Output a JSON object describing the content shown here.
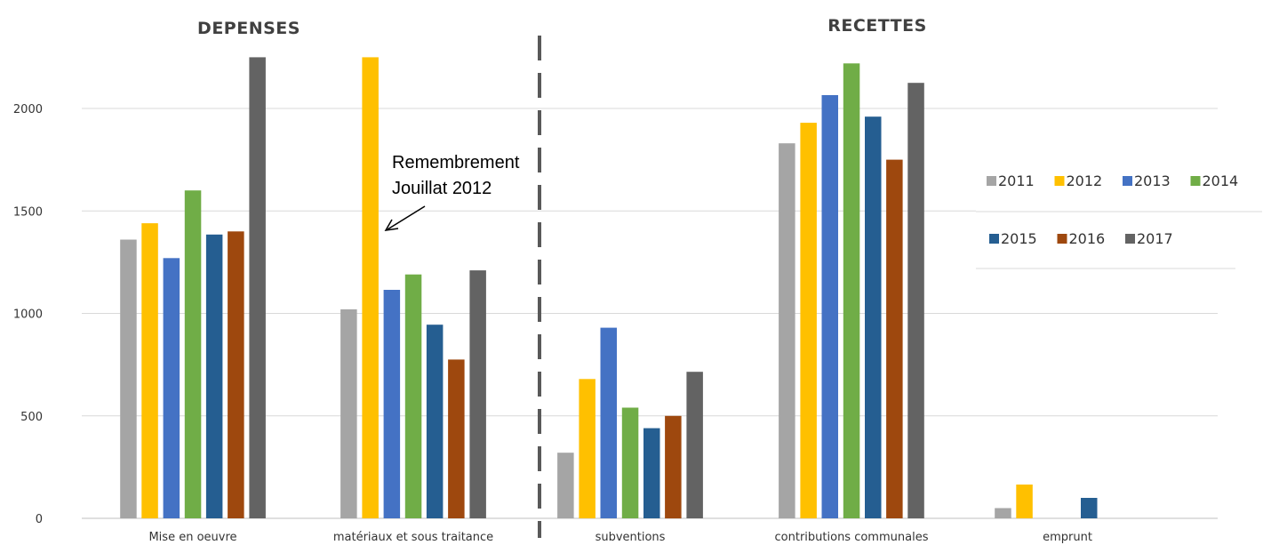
{
  "chart_data": {
    "type": "bar",
    "sections": [
      {
        "title": "DEPENSES",
        "categories": [
          "Mise en oeuvre",
          "matériaux et sous traitance"
        ]
      },
      {
        "title": "RECETTES",
        "categories": [
          "subventions",
          "contributions communales",
          "emprunt"
        ]
      }
    ],
    "categories": [
      "Mise en oeuvre",
      "matériaux et sous traitance",
      "subventions",
      "contributions communales",
      "emprunt"
    ],
    "series": [
      {
        "name": "2011",
        "color": "#A5A5A5",
        "values": [
          1360,
          1020,
          320,
          1830,
          50
        ]
      },
      {
        "name": "2012",
        "color": "#FFC000",
        "values": [
          1440,
          2250,
          680,
          1930,
          165
        ]
      },
      {
        "name": "2013",
        "color": "#4472C4",
        "values": [
          1270,
          1115,
          930,
          2065,
          0
        ]
      },
      {
        "name": "2014",
        "color": "#70AD47",
        "values": [
          1600,
          1190,
          540,
          2220,
          0
        ]
      },
      {
        "name": "2015",
        "color": "#255E91",
        "values": [
          1385,
          945,
          440,
          1960,
          100
        ]
      },
      {
        "name": "2016",
        "color": "#9E480E",
        "values": [
          1400,
          775,
          500,
          1750,
          0
        ]
      },
      {
        "name": "2017",
        "color": "#636363",
        "values": [
          2250,
          1210,
          715,
          2125,
          0
        ]
      }
    ],
    "yticks": [
      0,
      500,
      1000,
      1500,
      2000
    ],
    "ylim": [
      0,
      2300
    ],
    "grid": true,
    "legend_position": "right",
    "annotation": {
      "lines": [
        "Remembrement",
        "Jouillat 2012"
      ],
      "target_category": "matériaux et sous traitance",
      "target_series": "2012"
    }
  }
}
